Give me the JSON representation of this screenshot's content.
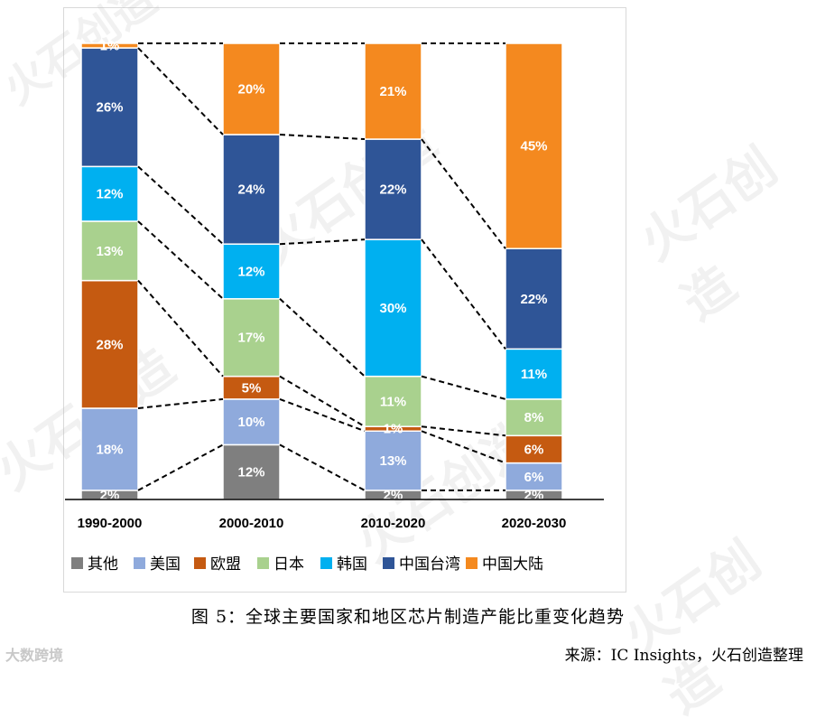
{
  "chart_data": {
    "type": "bar",
    "stacked": true,
    "categories": [
      "1990-2000",
      "2000-2010",
      "2010-2020",
      "2020-2030"
    ],
    "series": [
      {
        "name": "其他",
        "color": "#7f7f7f",
        "values": [
          2,
          12,
          2,
          2
        ]
      },
      {
        "name": "美国",
        "color": "#8faadc",
        "values": [
          18,
          10,
          13,
          6
        ]
      },
      {
        "name": "欧盟",
        "color": "#c55a11",
        "values": [
          28,
          5,
          1,
          6
        ]
      },
      {
        "name": "日本",
        "color": "#a9d18e",
        "values": [
          13,
          17,
          11,
          8
        ]
      },
      {
        "name": "韩国",
        "color": "#00b0f0",
        "values": [
          12,
          12,
          30,
          11
        ]
      },
      {
        "name": "中国台湾",
        "color": "#2f5597",
        "values": [
          26,
          24,
          22,
          22
        ]
      },
      {
        "name": "中国大陆",
        "color": "#f4891f",
        "values": [
          1,
          20,
          21,
          45
        ]
      }
    ],
    "ylim": [
      0,
      100
    ],
    "legend_position": "bottom",
    "grid": false
  },
  "caption": "图 5：全球主要国家和地区芯片制造产能比重变化趋势",
  "source": "来源：IC Insights，火石创造整理",
  "watermark_text": "火石创造",
  "watermark_logo": "大数跨境"
}
